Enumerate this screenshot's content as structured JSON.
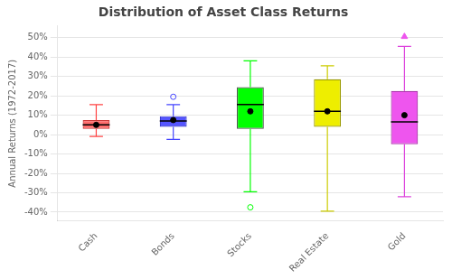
{
  "chart_data": {
    "type": "box",
    "title": "Distribution of Asset Class Returns",
    "ylabel": "Annual Returns (1972-2017)",
    "categories": [
      "Cash",
      "Bonds",
      "Stocks",
      "Real Estate",
      "Gold"
    ],
    "boxes": [
      {
        "q1": 0.03,
        "median": 0.05,
        "q3": 0.075,
        "whislo": -0.01,
        "whishi": 0.155,
        "mean": 0.05,
        "fliers": []
      },
      {
        "q1": 0.04,
        "median": 0.07,
        "q3": 0.095,
        "whislo": -0.025,
        "whishi": 0.155,
        "mean": 0.075,
        "fliers": [
          0.195
        ]
      },
      {
        "q1": 0.03,
        "median": 0.155,
        "q3": 0.245,
        "whislo": -0.295,
        "whishi": 0.38,
        "mean": 0.12,
        "fliers": [
          -0.375
        ]
      },
      {
        "q1": 0.04,
        "median": 0.12,
        "q3": 0.285,
        "whislo": -0.395,
        "whishi": 0.355,
        "mean": 0.12,
        "fliers": []
      },
      {
        "q1": -0.05,
        "median": 0.065,
        "q3": 0.225,
        "whislo": -0.32,
        "whishi": 0.455,
        "mean": 0.1,
        "fliers": []
      }
    ],
    "colors": [
      "#ff6b6b",
      "#5555ff",
      "#00ff00",
      "#eeee00",
      "#ee55ee"
    ],
    "whisker_colors": [
      "#ff4444",
      "#4444ff",
      "#00ff00",
      "#cccc00",
      "#dd44dd"
    ],
    "edge_colors": [
      "#cc3333",
      "#3333cc",
      "#555555",
      "#999900",
      "#aa33aa"
    ],
    "marked_point": {
      "category": "Gold",
      "value": 0.505,
      "color": "#ee55ee",
      "marker": "triangle"
    },
    "ylim": [
      -0.445,
      0.56
    ],
    "yticks": [
      {
        "value": -0.4,
        "label": "-40%"
      },
      {
        "value": -0.3,
        "label": "-30%"
      },
      {
        "value": -0.2,
        "label": "-20%"
      },
      {
        "value": -0.1,
        "label": "-10%"
      },
      {
        "value": 0.0,
        "label": "0%"
      },
      {
        "value": 0.1,
        "label": "10%"
      },
      {
        "value": 0.2,
        "label": "20%"
      },
      {
        "value": 0.3,
        "label": "30%"
      },
      {
        "value": 0.4,
        "label": "40%"
      },
      {
        "value": 0.5,
        "label": "50%"
      }
    ],
    "grid": true
  }
}
